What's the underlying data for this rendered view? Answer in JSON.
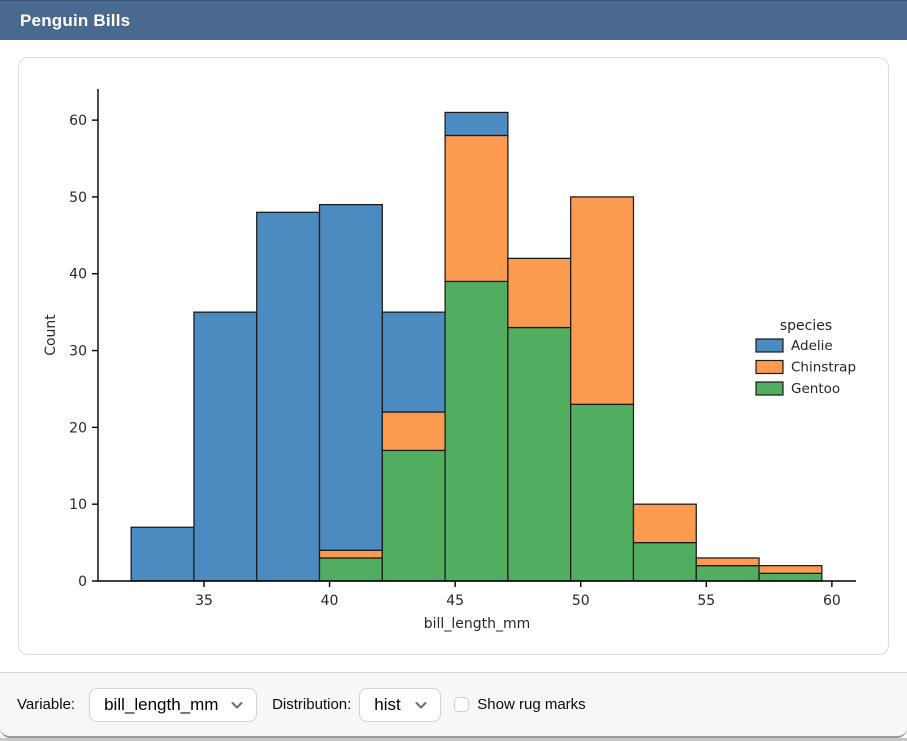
{
  "header": {
    "title": "Penguin Bills",
    "bg_color": "#4a698e"
  },
  "controls": {
    "variable_label": "Variable:",
    "variable_value": "bill_length_mm",
    "distribution_label": "Distribution:",
    "distribution_value": "hist",
    "rug_label": "Show rug marks",
    "rug_checked": false
  },
  "chart_data": {
    "type": "bar",
    "subtype": "stacked-histogram",
    "title": "",
    "xlabel": "bill_length_mm",
    "ylabel": "Count",
    "bin_edges": [
      32.1,
      34.6,
      37.1,
      39.6,
      42.1,
      44.6,
      47.1,
      49.6,
      52.1,
      54.6,
      57.1,
      59.6
    ],
    "series": [
      {
        "name": "Adelie",
        "color": "#4c8bc0",
        "values": [
          7,
          35,
          48,
          45,
          13,
          3,
          0,
          0,
          0,
          0,
          0
        ]
      },
      {
        "name": "Chinstrap",
        "color": "#fc9b50",
        "values": [
          0,
          0,
          0,
          1,
          5,
          19,
          9,
          27,
          5,
          1,
          1
        ]
      },
      {
        "name": "Gentoo",
        "color": "#51ad60",
        "values": [
          0,
          0,
          0,
          3,
          17,
          39,
          33,
          23,
          5,
          2,
          1
        ]
      }
    ],
    "stack_order": [
      "Gentoo",
      "Chinstrap",
      "Adelie"
    ],
    "bar_totals": [
      7,
      35,
      48,
      49,
      35,
      61,
      42,
      50,
      10,
      3,
      2
    ],
    "xticks": [
      35,
      40,
      45,
      50,
      55,
      60
    ],
    "yticks": [
      0,
      10,
      20,
      30,
      40,
      50,
      60
    ],
    "xlim": [
      30.78,
      60.96
    ],
    "ylim": [
      0,
      64.05
    ],
    "grid": false,
    "edge_color": "#1a1a1a",
    "legend": {
      "title": "species",
      "position": "right-outside"
    }
  }
}
